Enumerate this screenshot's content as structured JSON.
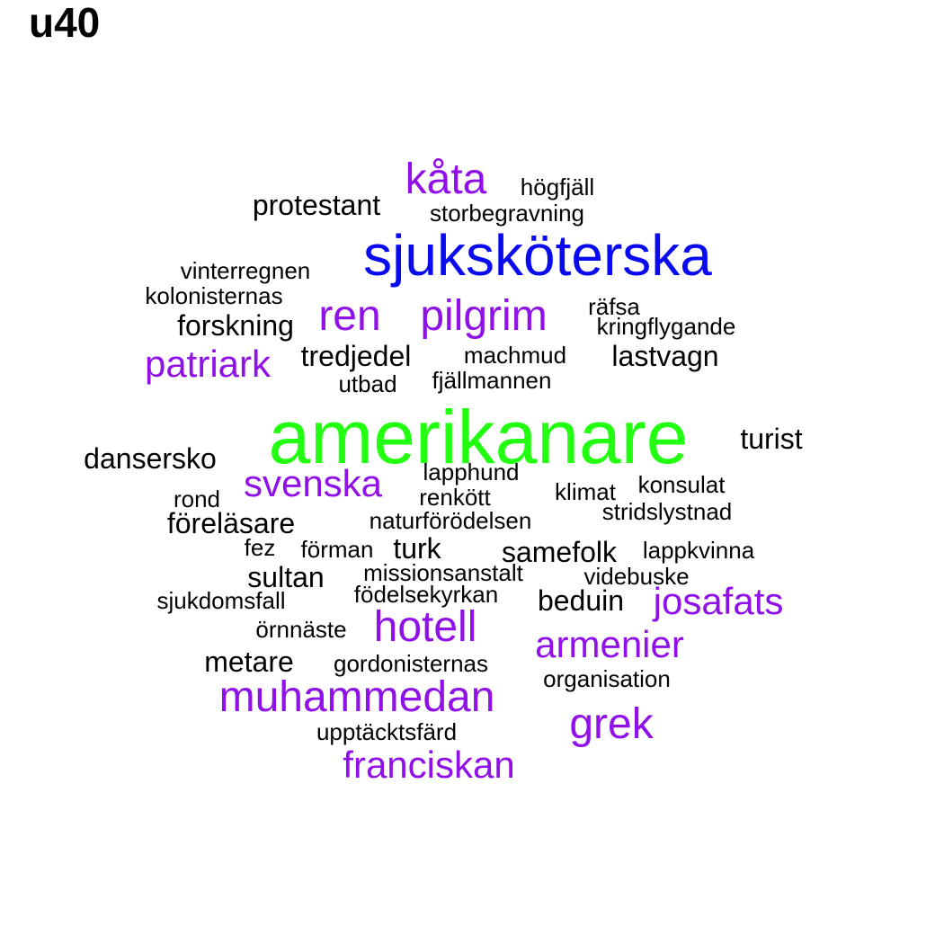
{
  "title": "u40",
  "colors": {
    "black": "#000000",
    "purple": "#9010e8",
    "blue": "#0a0af0",
    "green": "#22ff11"
  },
  "words": [
    {
      "id": "kata",
      "text": "kåta",
      "size": "s4",
      "color": "purple"
    },
    {
      "id": "hogfjall",
      "text": "högfjäll",
      "size": "s1",
      "color": "black"
    },
    {
      "id": "protestant",
      "text": "protestant",
      "size": "s2",
      "color": "black"
    },
    {
      "id": "storbegravning",
      "text": "storbegravning",
      "size": "s1",
      "color": "black"
    },
    {
      "id": "sjukskoterska",
      "text": "sjuksköterska",
      "size": "s5",
      "color": "blue"
    },
    {
      "id": "vinterregnen",
      "text": "vinterregnen",
      "size": "s1",
      "color": "black"
    },
    {
      "id": "kolonisternas",
      "text": "kolonisternas",
      "size": "s1",
      "color": "black"
    },
    {
      "id": "ren",
      "text": "ren",
      "size": "s4",
      "color": "purple"
    },
    {
      "id": "pilgrim",
      "text": "pilgrim",
      "size": "s4",
      "color": "purple"
    },
    {
      "id": "rafsa",
      "text": "räfsa",
      "size": "s1",
      "color": "black"
    },
    {
      "id": "forskning",
      "text": "forskning",
      "size": "s2",
      "color": "black"
    },
    {
      "id": "kringflygande",
      "text": "kringflygande",
      "size": "s1",
      "color": "black"
    },
    {
      "id": "patriark",
      "text": "patriark",
      "size": "s3",
      "color": "purple"
    },
    {
      "id": "tredjedel",
      "text": "tredjedel",
      "size": "s2",
      "color": "black"
    },
    {
      "id": "machmud",
      "text": "machmud",
      "size": "s1",
      "color": "black"
    },
    {
      "id": "lastvagn",
      "text": "lastvagn",
      "size": "s2",
      "color": "black"
    },
    {
      "id": "utbad",
      "text": "utbad",
      "size": "s1",
      "color": "black"
    },
    {
      "id": "fjallmannen",
      "text": "fjällmannen",
      "size": "s1",
      "color": "black"
    },
    {
      "id": "amerikanare",
      "text": "amerikanare",
      "size": "s6",
      "color": "green"
    },
    {
      "id": "turist",
      "text": "turist",
      "size": "s2",
      "color": "black"
    },
    {
      "id": "dansersko",
      "text": "dansersko",
      "size": "s2",
      "color": "black"
    },
    {
      "id": "svenska",
      "text": "svenska",
      "size": "s3",
      "color": "purple"
    },
    {
      "id": "lapphund",
      "text": "lapphund",
      "size": "s1",
      "color": "black"
    },
    {
      "id": "rond",
      "text": "rond",
      "size": "s1",
      "color": "black"
    },
    {
      "id": "renkott",
      "text": "renkött",
      "size": "s1",
      "color": "black"
    },
    {
      "id": "klimat",
      "text": "klimat",
      "size": "s1",
      "color": "black"
    },
    {
      "id": "konsulat",
      "text": "konsulat",
      "size": "s1",
      "color": "black"
    },
    {
      "id": "forelasare",
      "text": "föreläsare",
      "size": "s2",
      "color": "black"
    },
    {
      "id": "naturforodelsen",
      "text": "naturförödelsen",
      "size": "s1",
      "color": "black"
    },
    {
      "id": "stridslystnad",
      "text": "stridslystnad",
      "size": "s1",
      "color": "black"
    },
    {
      "id": "fez",
      "text": "fez",
      "size": "s1",
      "color": "black"
    },
    {
      "id": "forman",
      "text": "förman",
      "size": "s1",
      "color": "black"
    },
    {
      "id": "turk",
      "text": "turk",
      "size": "s2",
      "color": "black"
    },
    {
      "id": "samefolk",
      "text": "samefolk",
      "size": "s2",
      "color": "black"
    },
    {
      "id": "lappkvinna",
      "text": "lappkvinna",
      "size": "s1",
      "color": "black"
    },
    {
      "id": "sultan",
      "text": "sultan",
      "size": "s2",
      "color": "black"
    },
    {
      "id": "missionsanstalt",
      "text": "missionsanstalt",
      "size": "s1",
      "color": "black"
    },
    {
      "id": "videbuske",
      "text": "videbuske",
      "size": "s1",
      "color": "black"
    },
    {
      "id": "sjukdomsfall",
      "text": "sjukdomsfall",
      "size": "s1",
      "color": "black"
    },
    {
      "id": "fodelsekyrkan",
      "text": "födelsekyrkan",
      "size": "s1",
      "color": "black"
    },
    {
      "id": "beduin",
      "text": "beduin",
      "size": "s2",
      "color": "black"
    },
    {
      "id": "josafats",
      "text": "josafats",
      "size": "s3",
      "color": "purple"
    },
    {
      "id": "ornnaste",
      "text": "örnnäste",
      "size": "s1",
      "color": "black"
    },
    {
      "id": "hotell",
      "text": "hotell",
      "size": "s4",
      "color": "purple"
    },
    {
      "id": "armenier",
      "text": "armenier",
      "size": "s3",
      "color": "purple"
    },
    {
      "id": "metare",
      "text": "metare",
      "size": "s2",
      "color": "black"
    },
    {
      "id": "gordonisternas",
      "text": "gordonisternas",
      "size": "s1",
      "color": "black"
    },
    {
      "id": "organisation",
      "text": "organisation",
      "size": "s1",
      "color": "black"
    },
    {
      "id": "muhammedan",
      "text": "muhammedan",
      "size": "s4",
      "color": "purple"
    },
    {
      "id": "grek",
      "text": "grek",
      "size": "s4",
      "color": "purple"
    },
    {
      "id": "upptacktsfard",
      "text": "upptäcktsfärd",
      "size": "s1",
      "color": "black"
    },
    {
      "id": "franciskan",
      "text": "franciskan",
      "size": "s3",
      "color": "purple"
    }
  ]
}
